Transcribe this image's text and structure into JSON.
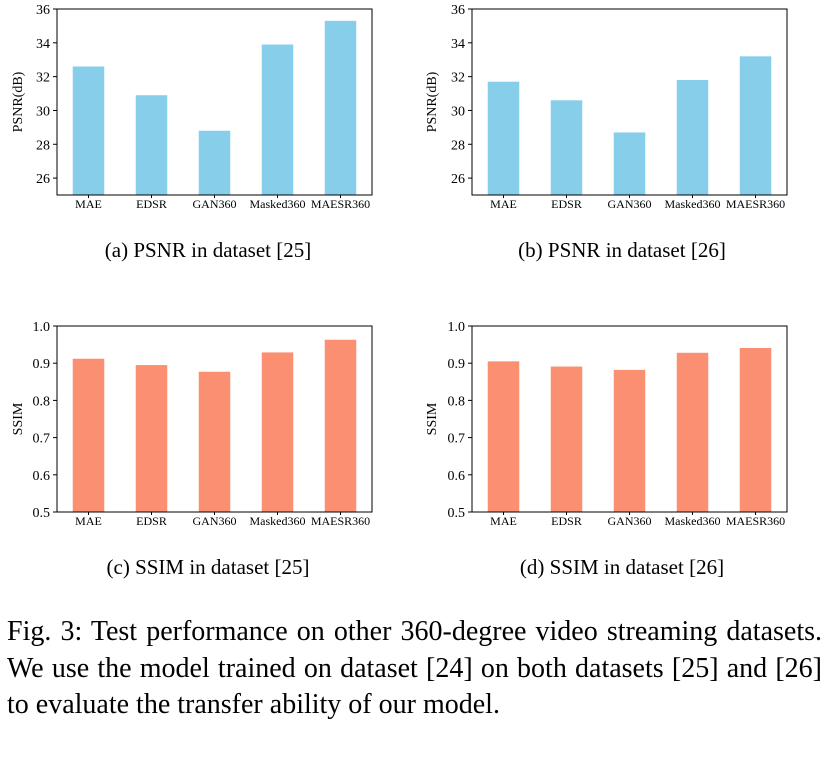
{
  "chart_data": [
    {
      "type": "bar",
      "ylabel": "PSNR(dB)",
      "categories": [
        "MAE",
        "EDSR",
        "GAN360",
        "Masked360",
        "MAESR360"
      ],
      "values": [
        32.6,
        30.9,
        28.8,
        33.9,
        35.3
      ],
      "ylim": [
        25,
        36
      ],
      "yticks": [
        "26",
        "28",
        "30",
        "32",
        "34",
        "36"
      ],
      "color": "#87CEEB",
      "caption": "(a)  PSNR  in  dataset  [25]"
    },
    {
      "type": "bar",
      "ylabel": "PSNR(dB)",
      "categories": [
        "MAE",
        "EDSR",
        "GAN360",
        "Masked360",
        "MAESR360"
      ],
      "values": [
        31.7,
        30.6,
        28.7,
        31.8,
        33.2
      ],
      "ylim": [
        25,
        36
      ],
      "yticks": [
        "26",
        "28",
        "30",
        "32",
        "34",
        "36"
      ],
      "color": "#87CEEB",
      "caption": "(b)  PSNR  in  dataset  [26]"
    },
    {
      "type": "bar",
      "ylabel": "SSIM",
      "categories": [
        "MAE",
        "EDSR",
        "GAN360",
        "Masked360",
        "MAESR360"
      ],
      "values": [
        0.912,
        0.895,
        0.877,
        0.929,
        0.963
      ],
      "ylim": [
        0.5,
        1.0
      ],
      "yticks": [
        "0.5",
        "0.6",
        "0.7",
        "0.8",
        "0.9",
        "1.0"
      ],
      "color": "#FA8F72",
      "caption": "(c)  SSIM  in  dataset  [25]"
    },
    {
      "type": "bar",
      "ylabel": "SSIM",
      "categories": [
        "MAE",
        "EDSR",
        "GAN360",
        "Masked360",
        "MAESR360"
      ],
      "values": [
        0.905,
        0.891,
        0.882,
        0.928,
        0.941
      ],
      "ylim": [
        0.5,
        1.0
      ],
      "yticks": [
        "0.5",
        "0.6",
        "0.7",
        "0.8",
        "0.9",
        "1.0"
      ],
      "color": "#FA8F72",
      "caption": "(d)  SSIM  in  dataset  [26]"
    }
  ],
  "figure_caption": "Fig. 3: Test performance on other 360-degree video streaming datasets. We use the model trained on dataset [24] on both datasets [25] and [26] to evaluate the transfer ability of our model."
}
